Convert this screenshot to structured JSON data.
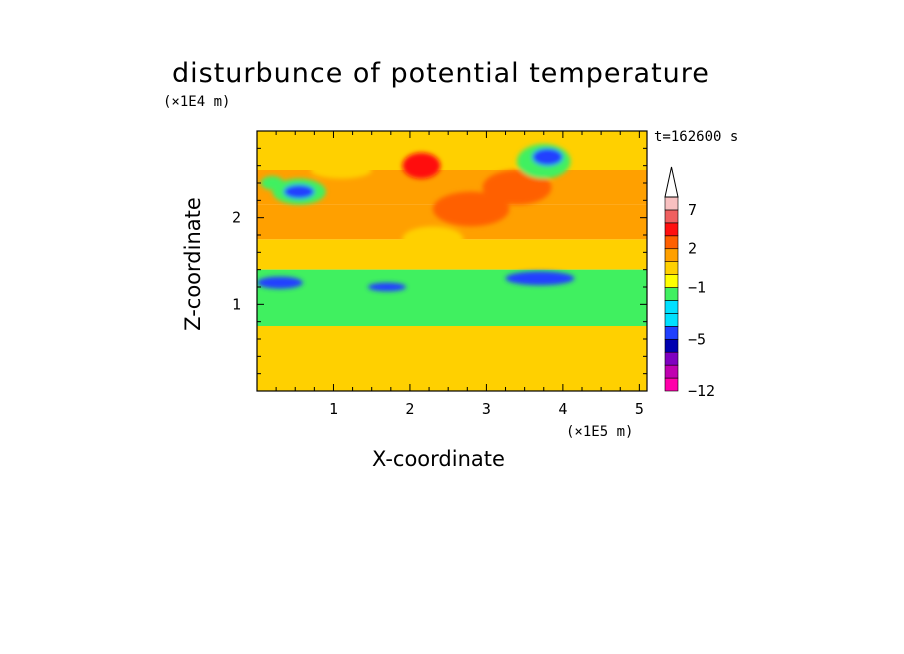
{
  "title": "disturbunce of potential temperature",
  "time_label": "t=162600 s",
  "chart_data": {
    "type": "heatmap",
    "title": "disturbunce of potential temperature",
    "xlabel": "X-coordinate",
    "ylabel": "Z-coordinate",
    "x_unit": "(×1E5 m)",
    "y_unit": "(×1E4 m)",
    "xlim": [
      0,
      5.1
    ],
    "ylim": [
      0,
      3.0
    ],
    "x_ticks": [
      "1",
      "2",
      "3",
      "4",
      "5"
    ],
    "x_tick_values": [
      1,
      2,
      3,
      4,
      5
    ],
    "y_ticks": [
      "1",
      "2"
    ],
    "y_tick_values": [
      1,
      2
    ],
    "annotation": "t=162600 s",
    "colorbar": {
      "labels": [
        "7",
        "2",
        "−1",
        "−5",
        "−12"
      ],
      "label_values": [
        7,
        2,
        -1,
        -5,
        -12
      ],
      "levels": [
        -12,
        -10,
        -8,
        -6,
        -5,
        -4,
        -3,
        -2,
        -1,
        0,
        1,
        2,
        3,
        5,
        7,
        9,
        11
      ],
      "colors": [
        "#ff00aa",
        "#c000b0",
        "#8000c0",
        "#0000b0",
        "#2040ff",
        "#00e0ff",
        "#00e0ff",
        "#40f060",
        "#ffff00",
        "#ffd000",
        "#ffa000",
        "#ff6000",
        "#ff1010",
        "#f06060",
        "#f8c0c0"
      ],
      "extend_max": true
    },
    "bands": [
      {
        "z": [
          2.55,
          3.0
        ],
        "value": 0.5
      },
      {
        "z": [
          2.15,
          2.55
        ],
        "value": 1
      },
      {
        "z": [
          1.75,
          2.15
        ],
        "value": 1.5
      },
      {
        "z": [
          1.4,
          1.75
        ],
        "value": 0
      },
      {
        "z": [
          0.75,
          1.4
        ],
        "value": -2
      },
      {
        "z": [
          0.0,
          0.75
        ],
        "value": 0.5
      }
    ],
    "features": [
      {
        "x": 2.15,
        "z": 2.6,
        "rx": 0.25,
        "rz": 0.15,
        "value": 3
      },
      {
        "x": 3.4,
        "z": 2.35,
        "rx": 0.45,
        "rz": 0.2,
        "value": 2
      },
      {
        "x": 2.8,
        "z": 2.1,
        "rx": 0.5,
        "rz": 0.2,
        "value": 2
      },
      {
        "x": 3.75,
        "z": 2.65,
        "rx": 0.35,
        "rz": 0.2,
        "value": -2
      },
      {
        "x": 3.8,
        "z": 2.7,
        "rx": 0.2,
        "rz": 0.1,
        "value": -5
      },
      {
        "x": 0.55,
        "z": 2.3,
        "rx": 0.35,
        "rz": 0.15,
        "value": -2
      },
      {
        "x": 0.55,
        "z": 2.3,
        "rx": 0.2,
        "rz": 0.08,
        "value": -5
      },
      {
        "x": 0.2,
        "z": 2.4,
        "rx": 0.15,
        "rz": 0.08,
        "value": -2
      },
      {
        "x": 1.1,
        "z": 2.55,
        "rx": 0.4,
        "rz": 0.1,
        "value": 0
      },
      {
        "x": 2.3,
        "z": 1.75,
        "rx": 0.4,
        "rz": 0.15,
        "value": 0
      },
      {
        "x": 0.3,
        "z": 1.25,
        "rx": 0.3,
        "rz": 0.07,
        "value": -5
      },
      {
        "x": 1.7,
        "z": 1.2,
        "rx": 0.25,
        "rz": 0.05,
        "value": -5
      },
      {
        "x": 3.7,
        "z": 1.3,
        "rx": 0.45,
        "rz": 0.08,
        "value": -5
      },
      {
        "x": 0.5,
        "z": 0.4,
        "rx": 0.5,
        "rz": 0.12,
        "value": 0
      },
      {
        "x": 2.5,
        "z": 0.25,
        "rx": 0.8,
        "rz": 0.1,
        "value": 0
      }
    ]
  }
}
